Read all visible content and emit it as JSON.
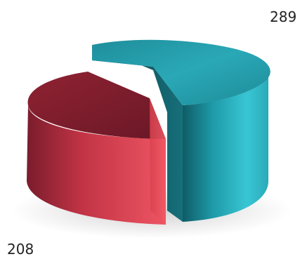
{
  "chart_data": {
    "type": "pie",
    "style": "3d-exploded",
    "categories": [
      "",
      ""
    ],
    "values": [
      289,
      208
    ],
    "slices": [
      {
        "value": 289,
        "label": "289",
        "color": "#2bb8c6",
        "label_position": "top-right"
      },
      {
        "value": 208,
        "label": "208",
        "color": "#e04a5a",
        "label_position": "bottom-left"
      }
    ],
    "title": "",
    "legend": "none"
  }
}
